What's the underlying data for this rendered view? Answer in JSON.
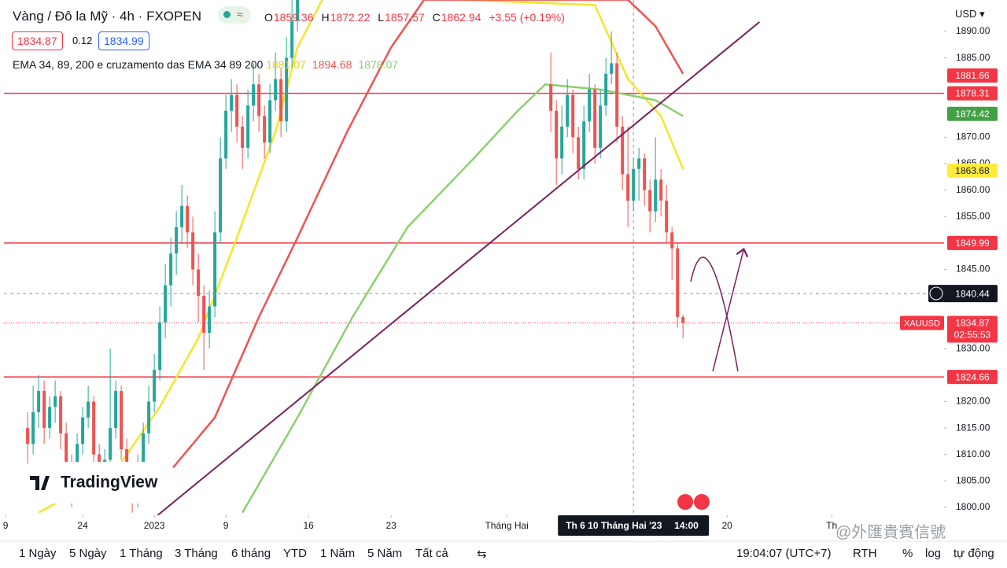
{
  "header": {
    "title": "Vàng / Đô la Mỹ · 4h · FXOPEN",
    "ohlc": [
      {
        "label": "O",
        "value": "1859.36"
      },
      {
        "label": "H",
        "value": "1872.22"
      },
      {
        "label": "L",
        "value": "1857.57"
      },
      {
        "label": "C",
        "value": "1862.94"
      }
    ],
    "change": "+3.55 (+0.19%)",
    "bid": "1834.87",
    "spread": "0.12",
    "ask": "1834.99",
    "indicator": "EMA 34, 89, 200 e cruzamento das EMA 34 89 200",
    "indicator_values": [
      "1881.07",
      "1894.68",
      "1878.07"
    ],
    "currency": "USD"
  },
  "chart_data": {
    "type": "candlestick",
    "xlim": [
      -4.3,
      166.4
    ],
    "ylim": [
      1798.5,
      1895.95
    ],
    "yticks": [
      {
        "value": 1890,
        "label": "1890.00"
      },
      {
        "value": 1885,
        "label": "1885.00"
      },
      {
        "value": 1870,
        "label": "1870.00"
      },
      {
        "value": 1865,
        "label": "1865.00"
      },
      {
        "value": 1860,
        "label": "1860.00"
      },
      {
        "value": 1855,
        "label": "1855.00"
      },
      {
        "value": 1845,
        "label": "1845.00"
      },
      {
        "value": 1830,
        "label": "1830.00"
      },
      {
        "value": 1820,
        "label": "1820.00"
      },
      {
        "value": 1815,
        "label": "1815.00"
      },
      {
        "value": 1810,
        "label": "1810.00"
      },
      {
        "value": 1805,
        "label": "1805.00"
      },
      {
        "value": 1800,
        "label": "1800.00"
      }
    ],
    "xticks": [
      {
        "value": -4,
        "label": "9"
      },
      {
        "value": 10,
        "label": "24"
      },
      {
        "value": 23,
        "label": "2023"
      },
      {
        "value": 36,
        "label": "9"
      },
      {
        "value": 51,
        "label": "16"
      },
      {
        "value": 66,
        "label": "23"
      },
      {
        "value": 87,
        "label": "Tháng Hai"
      },
      {
        "value": 127,
        "label": "20"
      },
      {
        "value": 146,
        "label": "Th"
      }
    ],
    "up_color": "#26a69a",
    "down_color": "#ef5350",
    "x": [
      0,
      1,
      2,
      3,
      4,
      5,
      6,
      7,
      8,
      9,
      10,
      11,
      12,
      13,
      14,
      15,
      16,
      17,
      18,
      19,
      20,
      21,
      22,
      23,
      24,
      25,
      26,
      27,
      28,
      29,
      30,
      31,
      32,
      33,
      34,
      35,
      36,
      37,
      38,
      39,
      40,
      41,
      42,
      43,
      44,
      45,
      46,
      47,
      48,
      49,
      95,
      96,
      97,
      98,
      99,
      100,
      101,
      102,
      103,
      104,
      105,
      106,
      107,
      108,
      109,
      110,
      111,
      112,
      113,
      114,
      115,
      116,
      117,
      118,
      119
    ],
    "ohlc": [
      [
        1815,
        1818,
        1806,
        1812
      ],
      [
        1812,
        1823,
        1810,
        1818
      ],
      [
        1818,
        1825,
        1815,
        1822
      ],
      [
        1822,
        1824,
        1812,
        1815
      ],
      [
        1815,
        1821,
        1813,
        1819
      ],
      [
        1819,
        1824,
        1816,
        1821
      ],
      [
        1821,
        1822,
        1811,
        1814
      ],
      [
        1814,
        1816,
        1805,
        1808
      ],
      [
        1808,
        1810,
        1800,
        1803
      ],
      [
        1803,
        1814,
        1801,
        1812
      ],
      [
        1812,
        1819,
        1810,
        1817
      ],
      [
        1817,
        1823,
        1815,
        1820
      ],
      [
        1820,
        1821,
        1808,
        1810
      ],
      [
        1810,
        1812,
        1801,
        1805
      ],
      [
        1805,
        1811,
        1803,
        1809
      ],
      [
        1809,
        1830,
        1807,
        1815
      ],
      [
        1815,
        1824,
        1813,
        1822
      ],
      [
        1822,
        1823,
        1809,
        1811
      ],
      [
        1811,
        1813,
        1804,
        1806
      ],
      [
        1806,
        1808,
        1799,
        1802
      ],
      [
        1802,
        1810,
        1800,
        1808
      ],
      [
        1808,
        1816,
        1806,
        1814
      ],
      [
        1814,
        1823,
        1812,
        1820
      ],
      [
        1820,
        1829,
        1818,
        1826
      ],
      [
        1826,
        1838,
        1824,
        1835
      ],
      [
        1835,
        1846,
        1832,
        1842
      ],
      [
        1842,
        1851,
        1838,
        1848
      ],
      [
        1848,
        1856,
        1844,
        1853
      ],
      [
        1853,
        1861,
        1850,
        1857
      ],
      [
        1857,
        1859,
        1849,
        1852
      ],
      [
        1852,
        1855,
        1842,
        1845
      ],
      [
        1845,
        1848,
        1835,
        1840
      ],
      [
        1840,
        1842,
        1826,
        1833
      ],
      [
        1833,
        1841,
        1830,
        1838
      ],
      [
        1838,
        1856,
        1836,
        1852
      ],
      [
        1852,
        1870,
        1850,
        1866
      ],
      [
        1866,
        1878,
        1864,
        1875
      ],
      [
        1875,
        1881,
        1871,
        1878
      ],
      [
        1878,
        1880,
        1869,
        1872
      ],
      [
        1872,
        1874,
        1864,
        1868
      ],
      [
        1868,
        1879,
        1866,
        1876
      ],
      [
        1876,
        1884,
        1873,
        1880
      ],
      [
        1880,
        1882,
        1871,
        1874
      ],
      [
        1874,
        1876,
        1866,
        1869
      ],
      [
        1869,
        1880,
        1867,
        1877
      ],
      [
        1877,
        1886,
        1875,
        1881
      ],
      [
        1881,
        1883,
        1870,
        1873
      ],
      [
        1873,
        1889,
        1871,
        1885
      ],
      [
        1885,
        1897,
        1883,
        1892
      ],
      [
        1892,
        1902,
        1890,
        1898
      ],
      [
        1880,
        1886,
        1871,
        1875
      ],
      [
        1875,
        1877,
        1861,
        1866
      ],
      [
        1866,
        1876,
        1863,
        1872
      ],
      [
        1872,
        1881,
        1870,
        1878
      ],
      [
        1878,
        1879,
        1867,
        1870
      ],
      [
        1870,
        1872,
        1862,
        1864
      ],
      [
        1864,
        1876,
        1862,
        1873
      ],
      [
        1873,
        1882,
        1871,
        1879
      ],
      [
        1879,
        1880,
        1865,
        1868
      ],
      [
        1868,
        1879,
        1866,
        1876
      ],
      [
        1876,
        1885,
        1874,
        1882
      ],
      [
        1882,
        1890,
        1880,
        1884
      ],
      [
        1884,
        1886,
        1869,
        1872
      ],
      [
        1872,
        1874,
        1860,
        1863
      ],
      [
        1863,
        1872,
        1853,
        1858
      ],
      [
        1858,
        1866,
        1856,
        1864
      ],
      [
        1864,
        1868,
        1858,
        1866
      ],
      [
        1866,
        1867,
        1857,
        1860
      ],
      [
        1860,
        1862,
        1852,
        1856
      ],
      [
        1856,
        1870,
        1854,
        1862
      ],
      [
        1862,
        1864,
        1855,
        1858
      ],
      [
        1858,
        1861,
        1850,
        1852
      ],
      [
        1852,
        1853,
        1843,
        1849
      ],
      [
        1849,
        1850,
        1834,
        1836
      ],
      [
        1836,
        1836.5,
        1832,
        1834.87
      ]
    ],
    "series": [
      {
        "color": "#f5e52a",
        "x": [
          2,
          16,
          24,
          31,
          38,
          45,
          49,
          54,
          103,
          109,
          115,
          119
        ],
        "values": [
          1799,
          1807,
          1819,
          1832,
          1851,
          1871,
          1887,
          1897,
          1895,
          1881,
          1874,
          1864
        ]
      },
      {
        "color": "#ef5350",
        "x": [
          26,
          34,
          42,
          49,
          58,
          66,
          72,
          109,
          114,
          119
        ],
        "values": [
          1807,
          1817,
          1836,
          1851,
          1871,
          1887,
          1896,
          1896,
          1891,
          1882
        ]
      },
      {
        "color": "#8bd16f",
        "x": [
          39,
          49,
          59,
          69,
          81,
          89,
          94,
          104,
          114,
          119
        ],
        "values": [
          1799,
          1817,
          1836,
          1853,
          1866,
          1875,
          1880,
          1879,
          1877,
          1874
        ]
      }
    ],
    "trendline": {
      "color": "#7b1f5c",
      "x": [
        23.6,
        132.9
      ],
      "values": [
        1798.5,
        1891.8
      ]
    },
    "price_badges": [
      {
        "value": 1881.66,
        "color": "#f23645",
        "hline": false
      },
      {
        "value": 1878.31,
        "color": "#f23645",
        "hline": true
      },
      {
        "value": 1874.42,
        "color": "#43a047",
        "hline": false
      },
      {
        "value": 1863.68,
        "color": "#ffeb3b",
        "hline": false
      },
      {
        "value": 1849.99,
        "color": "#f23645",
        "hline": true
      },
      {
        "value": 1824.66,
        "color": "#f23645",
        "hline": true
      }
    ],
    "crosshair": {
      "x": 110,
      "y": 1840.44,
      "label": "Th 6 10 Tháng Hai '23",
      "time": "14:00"
    },
    "last": {
      "value": 1834.87,
      "countdown": "02:55:53",
      "symbol": "XAUUSD",
      "color": "#f23645"
    }
  },
  "logo": "TradingView",
  "toolbar": {
    "ranges": [
      "1 Ngày",
      "5 Ngày",
      "1 Tháng",
      "3 Tháng",
      "6 tháng",
      "YTD",
      "1 Năm",
      "5 Năm",
      "Tất cả"
    ],
    "clock": "19:04:07 (UTC+7)",
    "session": "RTH",
    "options": [
      "%",
      "log",
      "tự động"
    ]
  },
  "watermark": "@外匯貴賓信號"
}
